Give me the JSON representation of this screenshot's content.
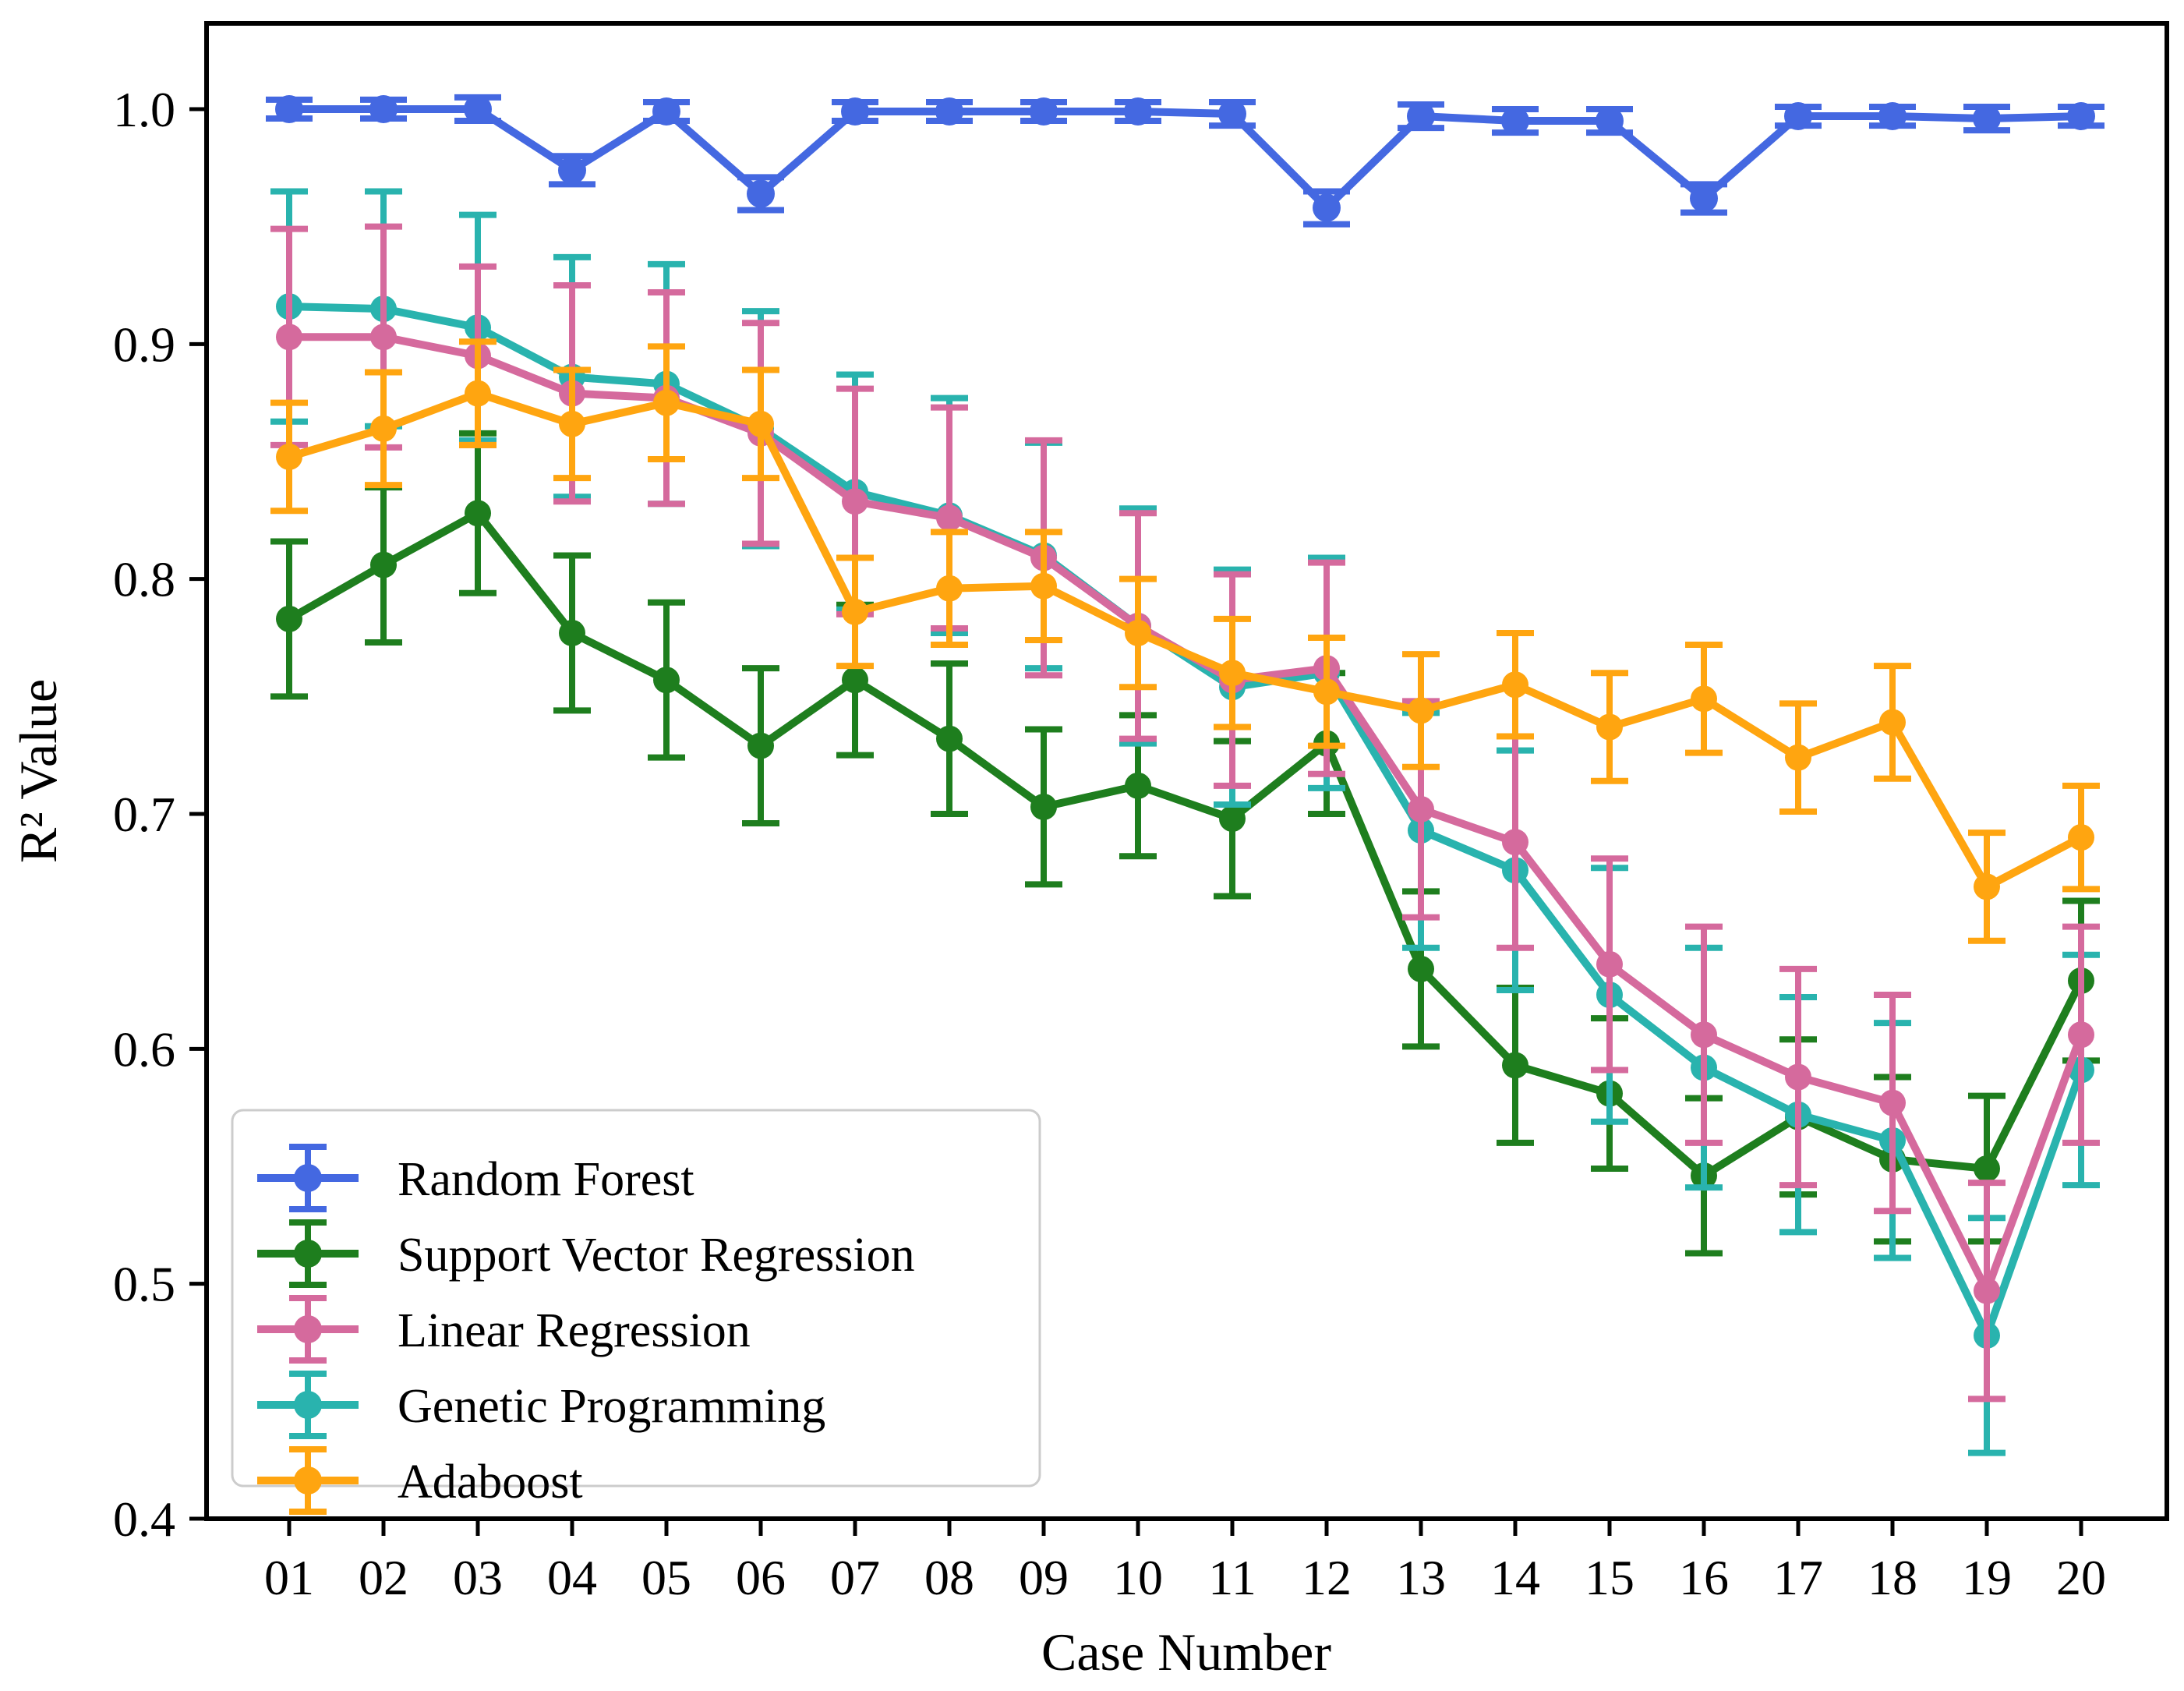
{
  "chart_data": {
    "type": "line",
    "title": "",
    "xlabel": "Case Number",
    "ylabel": "R² Value",
    "grid": false,
    "legend_position": "lower-left",
    "ylim": [
      0.4,
      1.0365
    ],
    "yticks": [
      1.0,
      0.9,
      0.8,
      0.7,
      0.6,
      0.5,
      0.4
    ],
    "ytick_labels": [
      "1.0",
      "0.9",
      "0.8",
      "0.7",
      "0.6",
      "0.5",
      "0.4"
    ],
    "x_categories": [
      "01",
      "02",
      "03",
      "04",
      "05",
      "06",
      "07",
      "08",
      "09",
      "10",
      "11",
      "12",
      "13",
      "14",
      "15",
      "16",
      "17",
      "18",
      "19",
      "20"
    ],
    "series": [
      {
        "name": "Random Forest",
        "color": "#4468e1",
        "marker": "circle",
        "values": [
          1.0,
          1.0,
          1.0,
          0.974,
          0.999,
          0.964,
          0.999,
          0.999,
          0.999,
          0.999,
          0.998,
          0.958,
          0.997,
          0.995,
          0.995,
          0.962,
          0.997,
          0.997,
          0.996,
          0.997
        ],
        "errors": [
          0.004,
          0.004,
          0.005,
          0.006,
          0.004,
          0.007,
          0.004,
          0.004,
          0.004,
          0.004,
          0.005,
          0.007,
          0.005,
          0.005,
          0.005,
          0.006,
          0.004,
          0.004,
          0.005,
          0.004
        ]
      },
      {
        "name": "Support Vector Regression",
        "color": "#1e7e1e",
        "marker": "circle",
        "values": [
          0.783,
          0.806,
          0.828,
          0.777,
          0.757,
          0.729,
          0.757,
          0.732,
          0.703,
          0.712,
          0.698,
          0.73,
          0.634,
          0.593,
          0.581,
          0.546,
          0.571,
          0.553,
          0.549,
          0.629
        ],
        "errors": [
          0.033,
          0.033,
          0.034,
          0.033,
          0.033,
          0.033,
          0.032,
          0.032,
          0.033,
          0.03,
          0.033,
          0.03,
          0.033,
          0.033,
          0.032,
          0.033,
          0.033,
          0.035,
          0.031,
          0.034
        ]
      },
      {
        "name": "Linear Regression",
        "color": "#d56a9d",
        "marker": "circle",
        "values": [
          0.903,
          0.903,
          0.895,
          0.879,
          0.877,
          0.862,
          0.833,
          0.826,
          0.809,
          0.78,
          0.757,
          0.762,
          0.702,
          0.688,
          0.636,
          0.606,
          0.588,
          0.577,
          0.497,
          0.606
        ],
        "errors": [
          0.046,
          0.047,
          0.038,
          0.046,
          0.045,
          0.047,
          0.048,
          0.047,
          0.05,
          0.048,
          0.045,
          0.045,
          0.046,
          0.045,
          0.045,
          0.046,
          0.046,
          0.046,
          0.046,
          0.046
        ]
      },
      {
        "name": "Genetic Programming",
        "color": "#29b3ae",
        "marker": "circle",
        "values": [
          0.916,
          0.915,
          0.907,
          0.886,
          0.883,
          0.864,
          0.837,
          0.827,
          0.81,
          0.78,
          0.754,
          0.76,
          0.693,
          0.676,
          0.623,
          0.592,
          0.572,
          0.561,
          0.478,
          0.591
        ],
        "errors": [
          0.049,
          0.05,
          0.048,
          0.051,
          0.051,
          0.05,
          0.05,
          0.05,
          0.048,
          0.05,
          0.05,
          0.049,
          0.05,
          0.051,
          0.054,
          0.051,
          0.05,
          0.05,
          0.05,
          0.049
        ]
      },
      {
        "name": "Adaboost",
        "color": "#ffa510",
        "marker": "circle",
        "values": [
          0.852,
          0.864,
          0.879,
          0.866,
          0.875,
          0.866,
          0.786,
          0.796,
          0.797,
          0.777,
          0.76,
          0.752,
          0.744,
          0.755,
          0.737,
          0.749,
          0.724,
          0.739,
          0.669,
          0.69
        ],
        "errors": [
          0.023,
          0.024,
          0.022,
          0.023,
          0.024,
          0.023,
          0.023,
          0.024,
          0.023,
          0.023,
          0.023,
          0.023,
          0.024,
          0.022,
          0.023,
          0.023,
          0.023,
          0.024,
          0.023,
          0.022
        ]
      }
    ],
    "legend_entries": [
      "Random Forest",
      "Support Vector Regression",
      "Linear Regression",
      "Genetic Programming",
      "Adaboost"
    ]
  }
}
